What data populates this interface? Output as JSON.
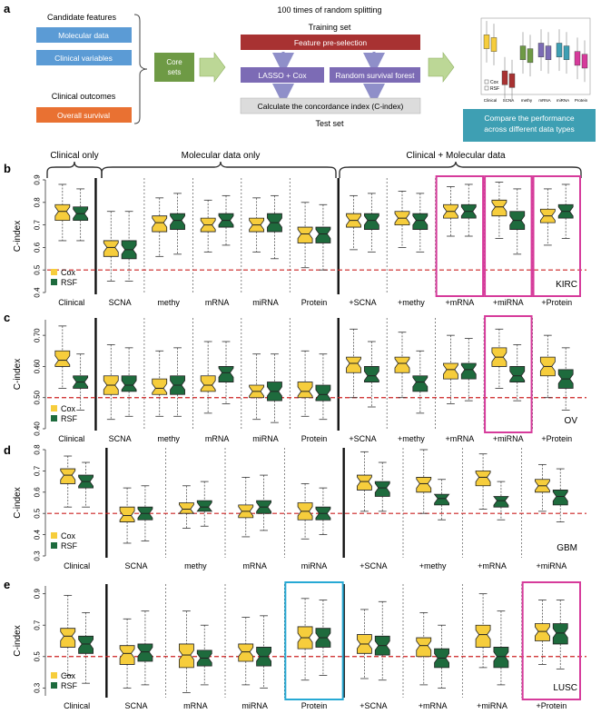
{
  "colors": {
    "cox": "#f6cd3c",
    "rsf": "#1e6b3d",
    "median_line": "#cc2222",
    "highlight": "#d63b9b",
    "highlight_alt": "#27a9d4",
    "box_blue": "#5b9bd5",
    "box_orange": "#e97132",
    "box_green": "#6e9a45",
    "box_red": "#a83232",
    "box_purple": "#7c6bb5",
    "box_gray": "#dcdcdc",
    "box_teal": "#3e9fb3"
  },
  "panel_a": {
    "letter": "a",
    "candidate_features": "Candidate features",
    "molecular_data": "Molecular data",
    "clinical_variables": "Clinical variables",
    "clinical_outcomes": "Clinical outcomes",
    "overall_survival": "Overall survival",
    "core_sets": "Core sets",
    "splitting_title": "100 times of random splitting",
    "training_set": "Training set",
    "feature_preselection": "Feature pre-selection",
    "lasso_cox": "LASSO + Cox",
    "random_survival_forest": "Random survival forest",
    "calc_cindex": "Calculate the concordance index (C-index)",
    "test_set": "Test set",
    "compare_performance": "Compare the performance across different data types",
    "mini_legend": [
      "Cox",
      "RSF"
    ],
    "mini_categories": [
      "Clinical",
      "SCNA",
      "methy",
      "mRNA",
      "miRNA",
      "Protein"
    ]
  },
  "group_headers": {
    "clinical_only": "Clinical only",
    "molecular_only": "Molecular data only",
    "clinical_molecular": "Clinical + Molecular data"
  },
  "legend": {
    "cox": "Cox",
    "rsf": "RSF"
  },
  "chart_data": [
    {
      "panel": "b",
      "type": "boxplot",
      "cancer": "KIRC",
      "ylabel": "C-index",
      "ylim": [
        0.4,
        0.9
      ],
      "yticks": [
        0.4,
        0.5,
        0.6,
        0.7,
        0.8,
        0.9
      ],
      "ytick_labels": [
        "0.4",
        "0.5",
        "0.6",
        "0.7",
        "0.8",
        "0.9"
      ],
      "reference_line": 0.5,
      "categories": [
        "Clinical",
        "SCNA",
        "methy",
        "mRNA",
        "miRNA",
        "Protein",
        "+SCNA",
        "+methy",
        "+mRNA",
        "+miRNA",
        "+Protein"
      ],
      "dividers_after": [
        0,
        5
      ],
      "highlight": [
        8,
        9,
        10
      ],
      "highlight_alt": [],
      "series": [
        {
          "name": "Cox",
          "values": [
            [
              0.63,
              0.72,
              0.76,
              0.79,
              0.88
            ],
            [
              0.45,
              0.56,
              0.6,
              0.63,
              0.76
            ],
            [
              0.56,
              0.67,
              0.71,
              0.74,
              0.82
            ],
            [
              0.58,
              0.67,
              0.7,
              0.73,
              0.81
            ],
            [
              0.58,
              0.67,
              0.7,
              0.73,
              0.82
            ],
            [
              0.51,
              0.62,
              0.66,
              0.69,
              0.8
            ],
            [
              0.59,
              0.69,
              0.72,
              0.75,
              0.83
            ],
            [
              0.6,
              0.7,
              0.73,
              0.76,
              0.85
            ],
            [
              0.65,
              0.73,
              0.76,
              0.79,
              0.87
            ],
            [
              0.64,
              0.74,
              0.78,
              0.81,
              0.89
            ],
            [
              0.61,
              0.71,
              0.74,
              0.77,
              0.86
            ]
          ]
        },
        {
          "name": "RSF",
          "values": [
            [
              0.63,
              0.72,
              0.75,
              0.78,
              0.86
            ],
            [
              0.45,
              0.55,
              0.59,
              0.63,
              0.76
            ],
            [
              0.57,
              0.68,
              0.72,
              0.75,
              0.84
            ],
            [
              0.61,
              0.69,
              0.72,
              0.75,
              0.83
            ],
            [
              0.55,
              0.67,
              0.71,
              0.75,
              0.83
            ],
            [
              0.5,
              0.62,
              0.66,
              0.69,
              0.79
            ],
            [
              0.58,
              0.68,
              0.72,
              0.75,
              0.84
            ],
            [
              0.58,
              0.68,
              0.72,
              0.75,
              0.84
            ],
            [
              0.65,
              0.73,
              0.76,
              0.79,
              0.88
            ],
            [
              0.57,
              0.68,
              0.72,
              0.76,
              0.86
            ],
            [
              0.64,
              0.73,
              0.76,
              0.79,
              0.88
            ]
          ]
        }
      ]
    },
    {
      "panel": "c",
      "type": "boxplot",
      "cancer": "OV",
      "ylabel": "C-index",
      "ylim": [
        0.4,
        0.75
      ],
      "yticks": [
        0.4,
        0.5,
        0.6,
        0.7
      ],
      "ytick_labels": [
        "0.40",
        "0.50",
        "0.60",
        "0.70"
      ],
      "reference_line": 0.5,
      "categories": [
        "Clinical",
        "SCNA",
        "methy",
        "mRNA",
        "miRNA",
        "Protein",
        "+SCNA",
        "+methy",
        "+mRNA",
        "+miRNA",
        "+Protein"
      ],
      "dividers_after": [
        0,
        5
      ],
      "highlight": [
        9
      ],
      "highlight_alt": [],
      "series": [
        {
          "name": "Cox",
          "values": [
            [
              0.53,
              0.6,
              0.62,
              0.65,
              0.73
            ],
            [
              0.43,
              0.51,
              0.54,
              0.57,
              0.67
            ],
            [
              0.44,
              0.51,
              0.53,
              0.56,
              0.65
            ],
            [
              0.45,
              0.52,
              0.54,
              0.57,
              0.68
            ],
            [
              0.43,
              0.5,
              0.52,
              0.54,
              0.64
            ],
            [
              0.44,
              0.5,
              0.52,
              0.55,
              0.65
            ],
            [
              0.5,
              0.58,
              0.61,
              0.63,
              0.72
            ],
            [
              0.5,
              0.58,
              0.61,
              0.63,
              0.71
            ],
            [
              0.48,
              0.56,
              0.59,
              0.61,
              0.7
            ],
            [
              0.53,
              0.6,
              0.63,
              0.66,
              0.72
            ],
            [
              0.5,
              0.57,
              0.6,
              0.63,
              0.7
            ]
          ]
        },
        {
          "name": "RSF",
          "values": [
            [
              0.46,
              0.53,
              0.55,
              0.57,
              0.64
            ],
            [
              0.44,
              0.52,
              0.54,
              0.57,
              0.66
            ],
            [
              0.44,
              0.51,
              0.54,
              0.57,
              0.66
            ],
            [
              0.48,
              0.55,
              0.58,
              0.6,
              0.68
            ],
            [
              0.42,
              0.49,
              0.52,
              0.55,
              0.64
            ],
            [
              0.43,
              0.49,
              0.51,
              0.54,
              0.64
            ],
            [
              0.47,
              0.55,
              0.57,
              0.6,
              0.68
            ],
            [
              0.45,
              0.52,
              0.55,
              0.57,
              0.65
            ],
            [
              0.49,
              0.56,
              0.59,
              0.61,
              0.69
            ],
            [
              0.49,
              0.55,
              0.57,
              0.6,
              0.67
            ],
            [
              0.46,
              0.53,
              0.56,
              0.59,
              0.66
            ]
          ]
        }
      ]
    },
    {
      "panel": "d",
      "type": "boxplot",
      "cancer": "GBM",
      "ylabel": "C-index",
      "ylim": [
        0.3,
        0.8
      ],
      "yticks": [
        0.3,
        0.4,
        0.5,
        0.6,
        0.7,
        0.8
      ],
      "ytick_labels": [
        "0.3",
        "0.4",
        "0.5",
        "0.6",
        "0.7",
        "0.8"
      ],
      "reference_line": 0.5,
      "categories": [
        "Clinical",
        "SCNA",
        "methy",
        "mRNA",
        "miRNA",
        "+SCNA",
        "+methy",
        "+mRNA",
        "+miRNA"
      ],
      "dividers_after": [
        0,
        4
      ],
      "highlight": [],
      "highlight_alt": [],
      "series": [
        {
          "name": "Cox",
          "values": [
            [
              0.53,
              0.64,
              0.68,
              0.71,
              0.77
            ],
            [
              0.36,
              0.46,
              0.49,
              0.53,
              0.62
            ],
            [
              0.43,
              0.5,
              0.52,
              0.55,
              0.63
            ],
            [
              0.39,
              0.48,
              0.51,
              0.54,
              0.67
            ],
            [
              0.38,
              0.47,
              0.51,
              0.55,
              0.64
            ],
            [
              0.51,
              0.61,
              0.65,
              0.68,
              0.79
            ],
            [
              0.5,
              0.6,
              0.64,
              0.67,
              0.8
            ],
            [
              0.52,
              0.63,
              0.67,
              0.7,
              0.78
            ],
            [
              0.51,
              0.6,
              0.63,
              0.66,
              0.73
            ]
          ]
        },
        {
          "name": "RSF",
          "values": [
            [
              0.53,
              0.62,
              0.65,
              0.68,
              0.74
            ],
            [
              0.37,
              0.47,
              0.5,
              0.53,
              0.63
            ],
            [
              0.44,
              0.51,
              0.53,
              0.56,
              0.65
            ],
            [
              0.42,
              0.5,
              0.53,
              0.56,
              0.68
            ],
            [
              0.4,
              0.47,
              0.5,
              0.53,
              0.62
            ],
            [
              0.51,
              0.58,
              0.62,
              0.65,
              0.74
            ],
            [
              0.47,
              0.54,
              0.57,
              0.59,
              0.66
            ],
            [
              0.47,
              0.53,
              0.56,
              0.58,
              0.65
            ],
            [
              0.46,
              0.54,
              0.58,
              0.61,
              0.71
            ]
          ]
        }
      ]
    },
    {
      "panel": "e",
      "type": "boxplot",
      "cancer": "LUSC",
      "ylabel": "C-index",
      "ylim": [
        0.25,
        0.95
      ],
      "yticks": [
        0.3,
        0.5,
        0.7,
        0.9
      ],
      "ytick_labels": [
        "0.3",
        "0.5",
        "0.7",
        "0.9"
      ],
      "reference_line": 0.5,
      "categories": [
        "Clinical",
        "SCNA",
        "mRNA",
        "miRNA",
        "Protein",
        "+SCNA",
        "+mRNA",
        "+miRNA",
        "+Protein"
      ],
      "dividers_after": [
        0,
        4
      ],
      "highlight": [
        8
      ],
      "highlight_alt": [
        4
      ],
      "series": [
        {
          "name": "Cox",
          "values": [
            [
              0.38,
              0.56,
              0.63,
              0.68,
              0.89
            ],
            [
              0.3,
              0.45,
              0.52,
              0.57,
              0.74
            ],
            [
              0.27,
              0.43,
              0.51,
              0.58,
              0.79
            ],
            [
              0.32,
              0.47,
              0.53,
              0.58,
              0.75
            ],
            [
              0.35,
              0.55,
              0.62,
              0.69,
              0.87
            ],
            [
              0.36,
              0.52,
              0.58,
              0.64,
              0.8
            ],
            [
              0.32,
              0.5,
              0.57,
              0.62,
              0.78
            ],
            [
              0.43,
              0.56,
              0.64,
              0.7,
              0.9
            ],
            [
              0.45,
              0.6,
              0.66,
              0.71,
              0.86
            ]
          ]
        },
        {
          "name": "RSF",
          "values": [
            [
              0.33,
              0.52,
              0.58,
              0.63,
              0.78
            ],
            [
              0.32,
              0.47,
              0.53,
              0.58,
              0.79
            ],
            [
              0.32,
              0.44,
              0.49,
              0.54,
              0.7
            ],
            [
              0.3,
              0.44,
              0.5,
              0.56,
              0.76
            ],
            [
              0.38,
              0.56,
              0.62,
              0.68,
              0.86
            ],
            [
              0.35,
              0.51,
              0.57,
              0.63,
              0.85
            ],
            [
              0.3,
              0.43,
              0.49,
              0.55,
              0.7
            ],
            [
              0.32,
              0.43,
              0.5,
              0.56,
              0.79
            ],
            [
              0.42,
              0.58,
              0.65,
              0.71,
              0.86
            ]
          ]
        }
      ]
    }
  ]
}
